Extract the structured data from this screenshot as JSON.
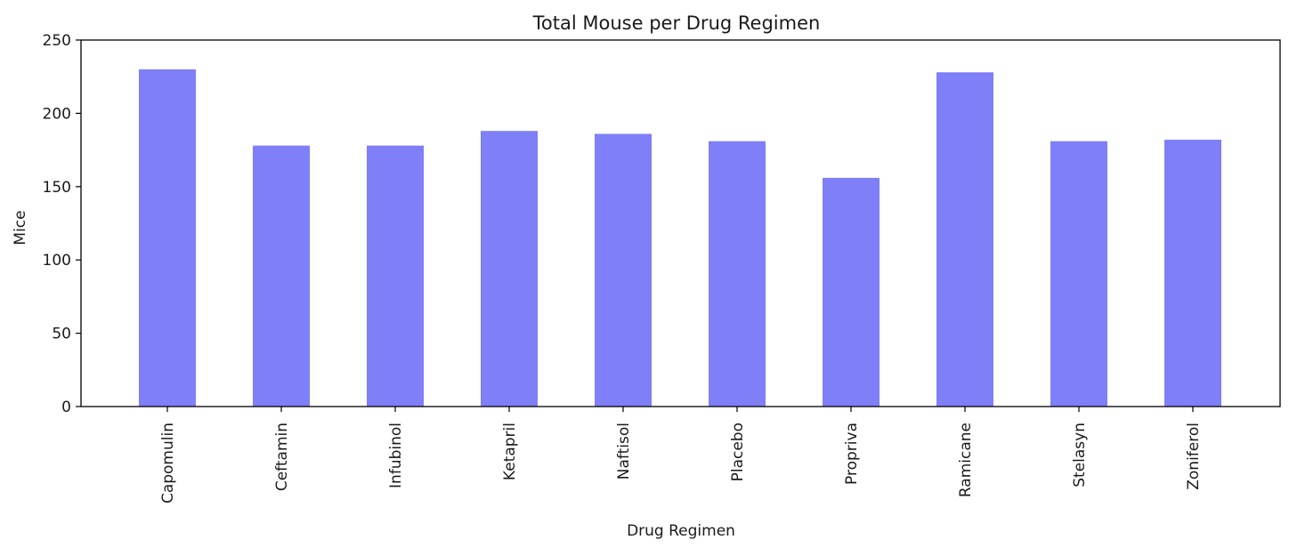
{
  "chart_data": {
    "type": "bar",
    "title": "Total Mouse per Drug Regimen",
    "xlabel": "Drug Regimen",
    "ylabel": "Mice",
    "categories": [
      "Capomulin",
      "Ceftamin",
      "Infubinol",
      "Ketapril",
      "Naftisol",
      "Placebo",
      "Propriva",
      "Ramicane",
      "Stelasyn",
      "Zoniferol"
    ],
    "values": [
      230,
      178,
      178,
      188,
      186,
      181,
      156,
      228,
      181,
      182
    ],
    "ylim": [
      0,
      250
    ],
    "yticks": [
      0,
      50,
      100,
      150,
      200,
      250
    ],
    "bar_color": "#7f7ff7",
    "grid": false,
    "legend": "none"
  }
}
